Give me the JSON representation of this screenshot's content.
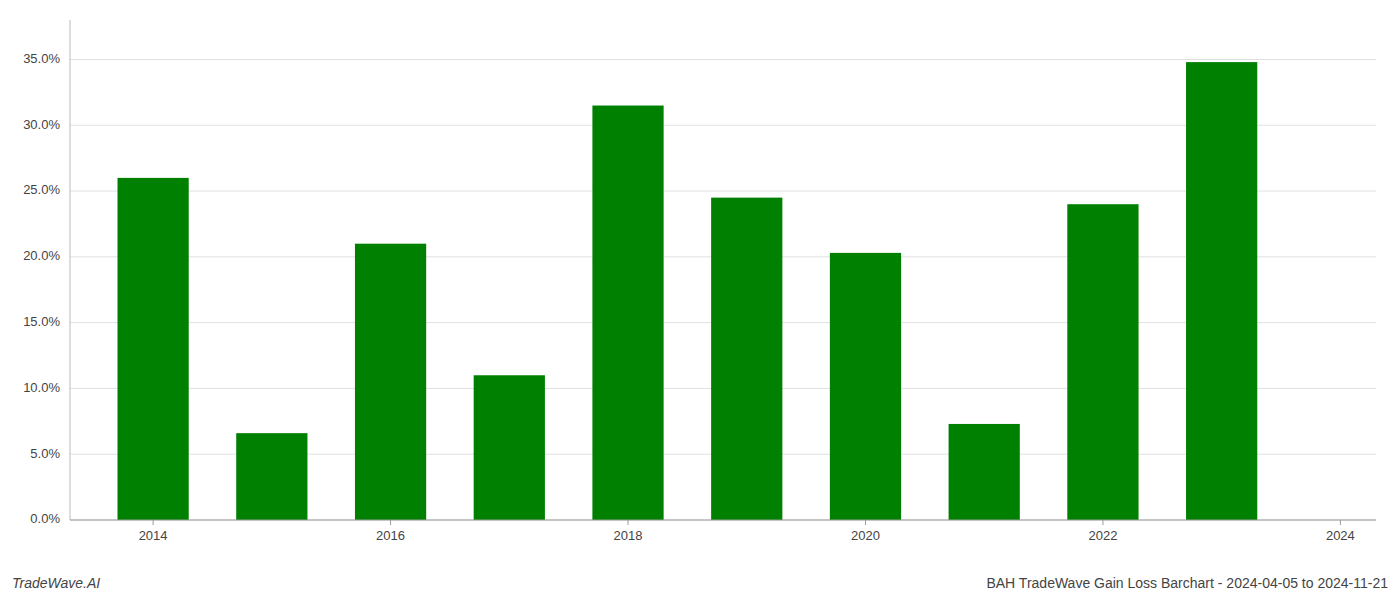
{
  "chart_data": {
    "type": "bar",
    "title": "BAH TradeWave Gain Loss Barchart - 2024-04-05 to 2024-11-21",
    "annotations": [
      "TradeWave.AI"
    ],
    "x": [
      2014,
      2015,
      2016,
      2017,
      2018,
      2019,
      2020,
      2021,
      2022,
      2023
    ],
    "values": [
      0.26,
      0.066,
      0.21,
      0.11,
      0.315,
      0.245,
      0.203,
      0.073,
      0.24,
      0.348
    ],
    "color": "#008000",
    "xlim": [
      2013.3,
      2024.3
    ],
    "xticks": [
      2014,
      2016,
      2018,
      2020,
      2022,
      2024
    ],
    "ylim": [
      0,
      0.38
    ],
    "yticks": [
      {
        "value": 0.0,
        "label": "0.0%"
      },
      {
        "value": 0.05,
        "label": "5.0%"
      },
      {
        "value": 0.1,
        "label": "10.0%"
      },
      {
        "value": 0.15,
        "label": "15.0%"
      },
      {
        "value": 0.2,
        "label": "20.0%"
      },
      {
        "value": 0.25,
        "label": "25.0%"
      },
      {
        "value": 0.3,
        "label": "30.0%"
      },
      {
        "value": 0.35,
        "label": "35.0%"
      }
    ],
    "grid": true
  }
}
